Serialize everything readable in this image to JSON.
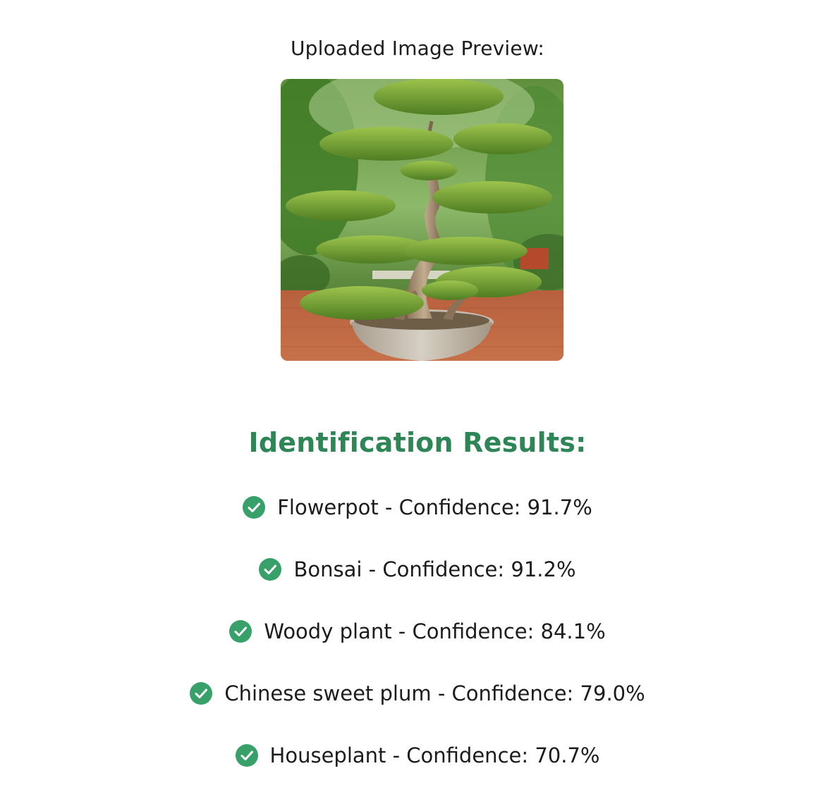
{
  "preview": {
    "label": "Uploaded Image Preview:",
    "image_icon": "bonsai-photo"
  },
  "results": {
    "heading": "Identification Results:",
    "accent_color": "#2e8555",
    "check_color": "#38a169",
    "icon": "check-circle-icon",
    "items": [
      {
        "text": "Flowerpot - Confidence: 91.7%"
      },
      {
        "text": "Bonsai - Confidence: 91.2%"
      },
      {
        "text": "Woody plant - Confidence: 84.1%"
      },
      {
        "text": "Chinese sweet plum - Confidence: 79.0%"
      },
      {
        "text": "Houseplant - Confidence: 70.7%"
      }
    ]
  }
}
